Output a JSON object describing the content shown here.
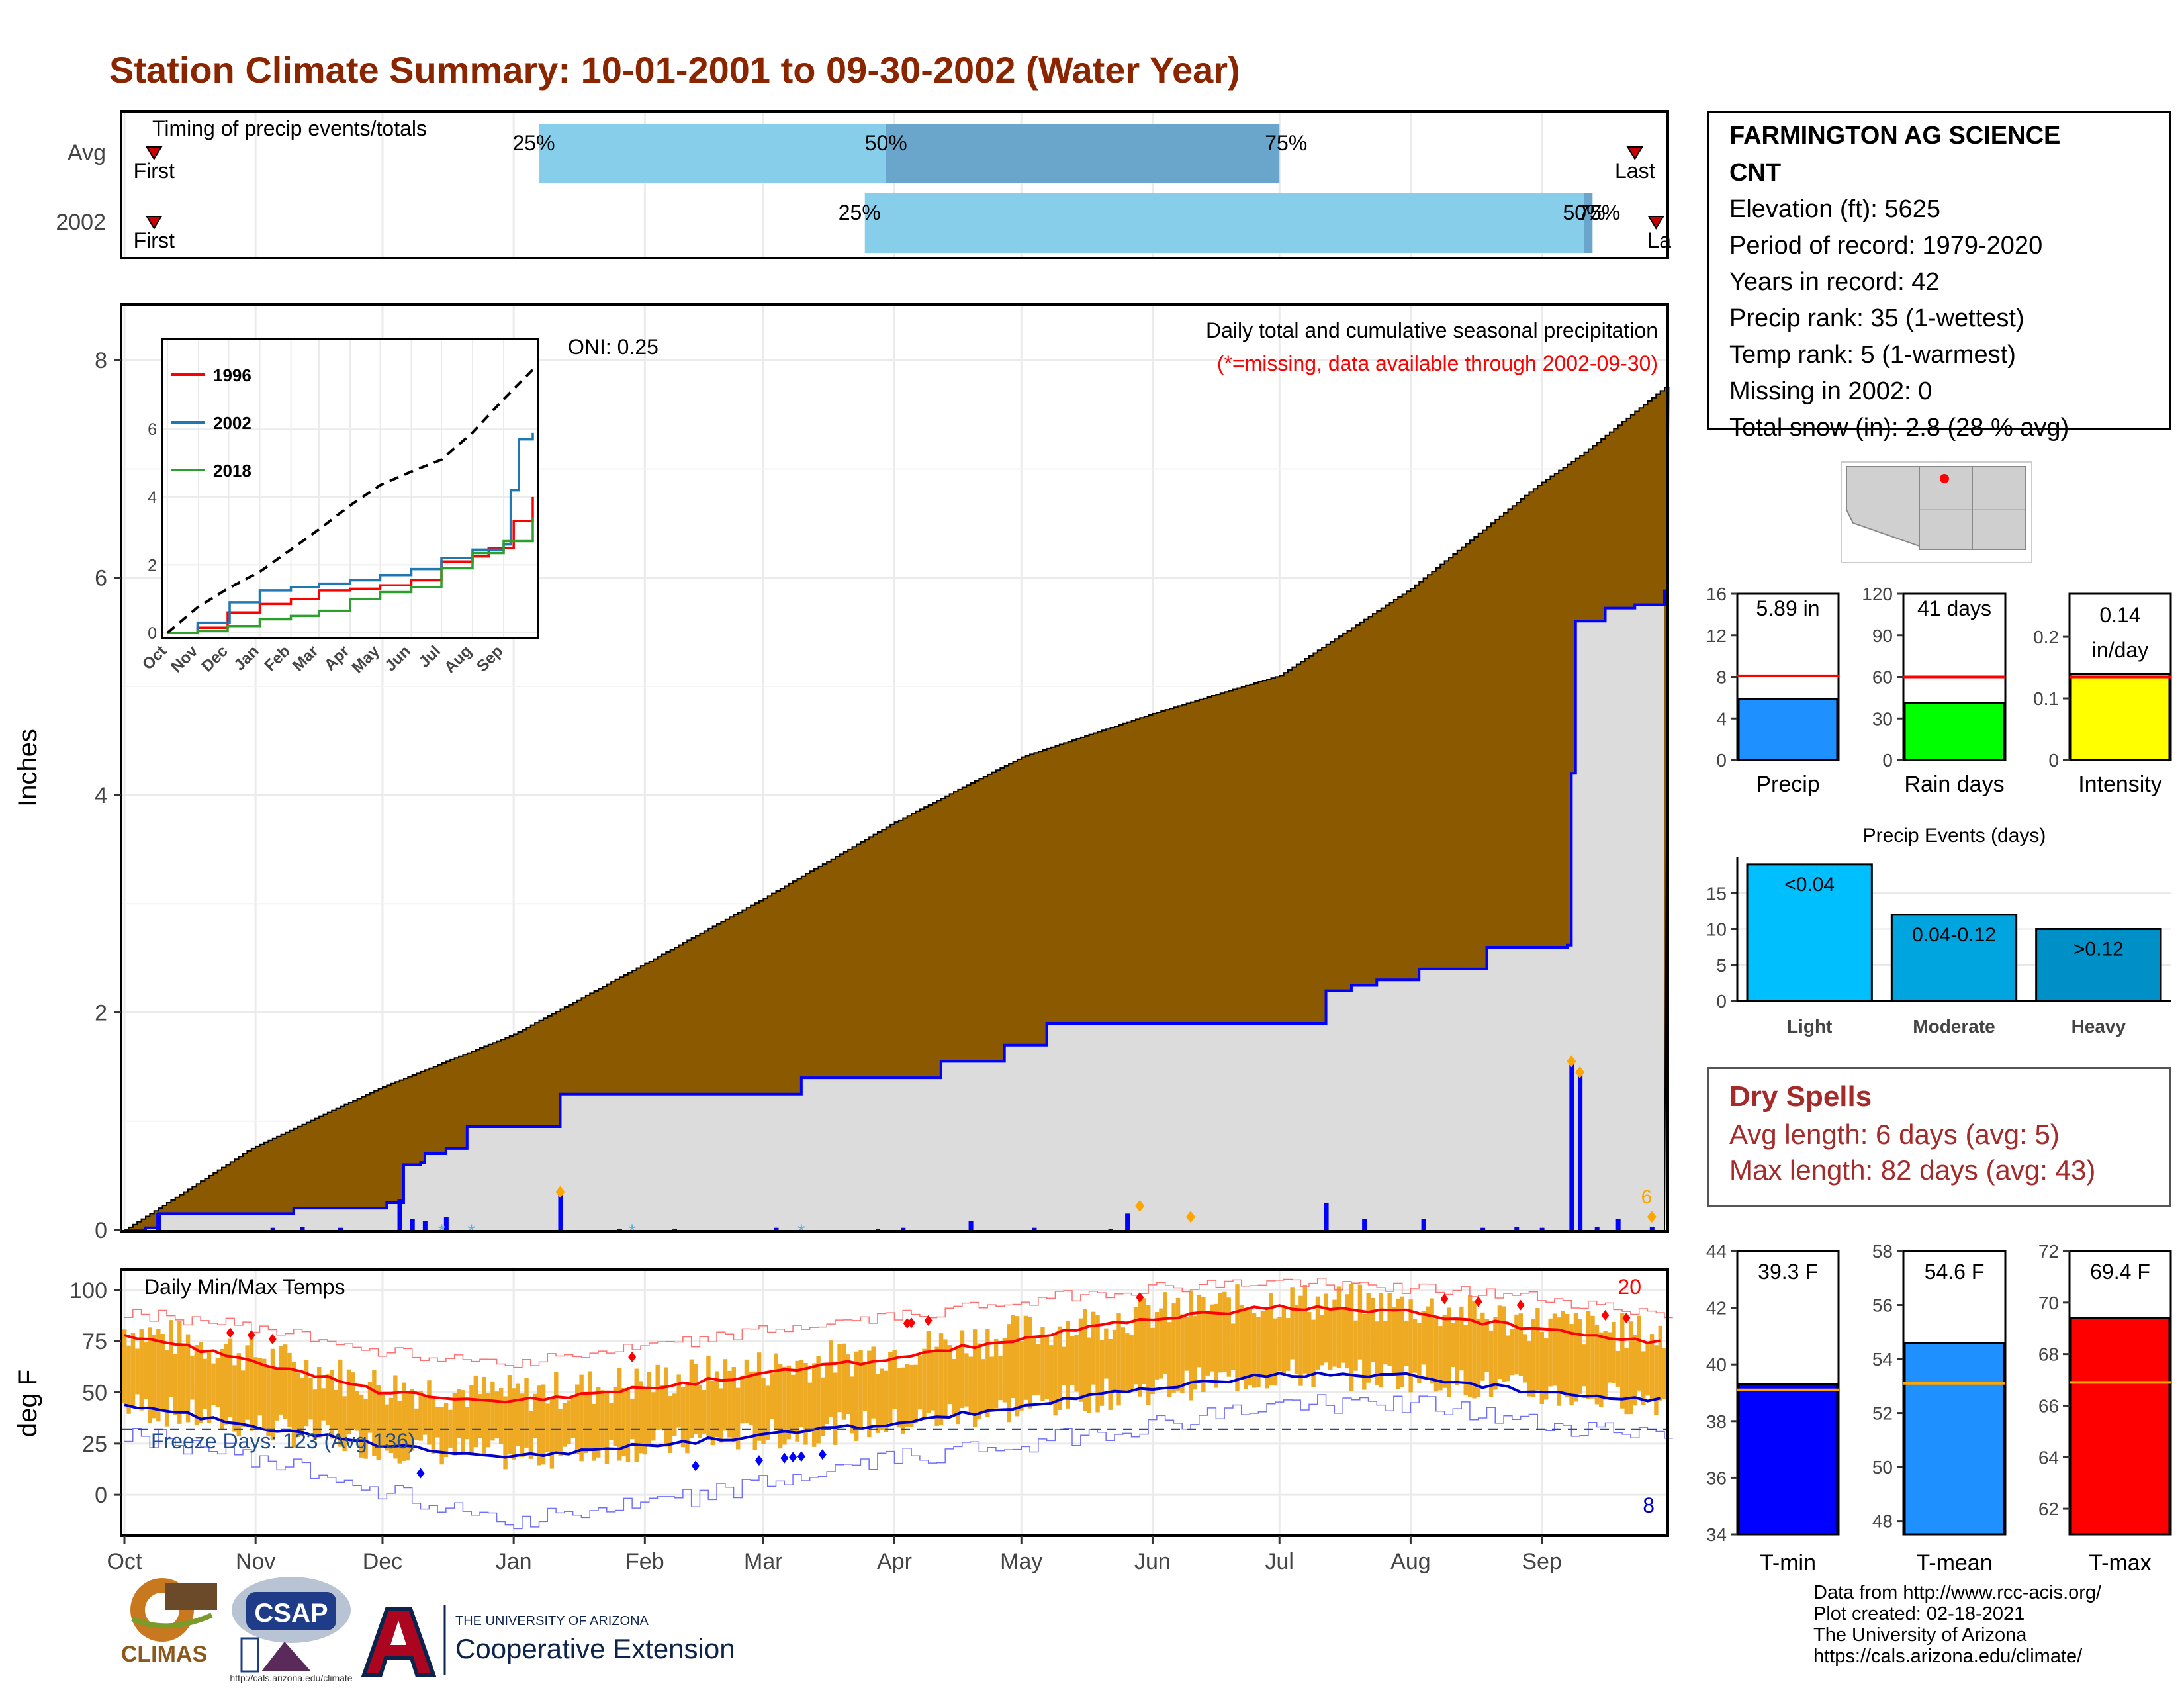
{
  "page": {
    "title": "Station Climate Summary: 10-01-2001 to 09-30-2002 (Water Year)"
  },
  "timing": {
    "label": "Timing of precip events/totals",
    "rows": [
      {
        "name": "Avg",
        "first_label": "First",
        "last_label": "Last",
        "p25_label": "25%",
        "p50_label": "50%",
        "p75_label": "75%",
        "first_day": 7,
        "last_day": 357,
        "p25_day": 98,
        "p50_day": 180,
        "p75_day": 273
      },
      {
        "name": "2002",
        "first_label": "First",
        "last_label": "La",
        "p25_label": "25%",
        "p50_label": "50%",
        "p75_label": "75%",
        "first_day": 7,
        "last_day": 362,
        "p25_day": 175,
        "p50_day": 345,
        "p75_day": 347
      }
    ]
  },
  "precip_panel": {
    "title": "Daily total and cumulative seasonal precipitation",
    "note": "(*=missing, data available through 2002-09-30)",
    "oni": "ONI: 0.25",
    "ylabel": "Inches",
    "corner_count": "6"
  },
  "temp_panel": {
    "title": "Daily Min/Max Temps",
    "ylabel": "deg F",
    "freeze_label": "Freeze Days: 123 (Avg 136)",
    "hot_count": "20",
    "cold_count": "8"
  },
  "station": {
    "name_line1": "FARMINGTON AG SCIENCE",
    "name_line2": "CNT",
    "elevation": "Elevation (ft): 5625",
    "period": "Period of record: 1979-2020",
    "years": "Years in record: 42",
    "precip_rank": "Precip rank: 35 (1-wettest)",
    "temp_rank": "Temp rank: 5 (1-warmest)",
    "missing": "Missing in 2002: 0",
    "snow": "Total snow (in): 2.8 (28 % avg)"
  },
  "dry_spells": {
    "title": "Dry Spells",
    "avg": "Avg length: 6 days (avg: 5)",
    "max": "Max length: 82 days (avg: 43)"
  },
  "footer": {
    "line1": "Data from http://www.rcc-acis.org/",
    "line2": "Plot created: 02-18-2021",
    "line3": "The University of Arizona",
    "line4": "https://cals.arizona.edu/climate/",
    "logo_climas": "CLIMAS",
    "logo_csap": "CSAP",
    "logo_csap_url": "http://cals.arizona.edu/climate",
    "logo_ua_top": "THE UNIVERSITY OF ARIZONA",
    "logo_ua_bottom": "Cooperative Extension"
  },
  "colors": {
    "title": "#8b2500",
    "cum_precip_fill": "#8b5a00",
    "avg_cum_area": "#dcdcdc",
    "daily_precip": "#0000ff",
    "temp_bar": "#eeaa22",
    "tmax_line": "#ff0000",
    "tmin_line": "#0000cc",
    "timing_light": "#87ceeb",
    "timing_dark": "#6aa5cc"
  },
  "chart_data": [
    {
      "type": "area",
      "name": "cumulative_precip",
      "xlabel": "",
      "ylabel": "Inches",
      "x_ticks": [
        "Oct",
        "Nov",
        "Dec",
        "Jan",
        "Feb",
        "Mar",
        "Apr",
        "May",
        "Jun",
        "Jul",
        "Aug",
        "Sep"
      ],
      "ylim": [
        0,
        8.5
      ],
      "y_ticks": [
        0,
        2,
        4,
        6,
        8
      ],
      "avg_cumulative_points": [
        [
          0,
          0
        ],
        [
          30,
          0.75
        ],
        [
          60,
          1.3
        ],
        [
          92,
          1.8
        ],
        [
          123,
          2.45
        ],
        [
          151,
          3.05
        ],
        [
          182,
          3.75
        ],
        [
          212,
          4.35
        ],
        [
          243,
          4.75
        ],
        [
          273,
          5.1
        ],
        [
          304,
          5.9
        ],
        [
          334,
          6.85
        ],
        [
          345,
          7.15
        ],
        [
          364,
          7.75
        ]
      ],
      "cumulative_2002_steps": [
        [
          0,
          0
        ],
        [
          5,
          0.02
        ],
        [
          8,
          0.15
        ],
        [
          35,
          0.15
        ],
        [
          40,
          0.2
        ],
        [
          62,
          0.25
        ],
        [
          66,
          0.6
        ],
        [
          70,
          0.62
        ],
        [
          71,
          0.7
        ],
        [
          76,
          0.75
        ],
        [
          81,
          0.95
        ],
        [
          103,
          1.25
        ],
        [
          160,
          1.4
        ],
        [
          193,
          1.55
        ],
        [
          208,
          1.7
        ],
        [
          218,
          1.9
        ],
        [
          284,
          2.2
        ],
        [
          290,
          2.25
        ],
        [
          296,
          2.3
        ],
        [
          306,
          2.4
        ],
        [
          322,
          2.6
        ],
        [
          341,
          2.62
        ],
        [
          342,
          4.2
        ],
        [
          343,
          5.6
        ],
        [
          350,
          5.72
        ],
        [
          357,
          5.75
        ],
        [
          364,
          5.89
        ]
      ],
      "daily_precip_bars": [
        [
          8,
          0.15
        ],
        [
          35,
          0.02
        ],
        [
          42,
          0.03
        ],
        [
          51,
          0.02
        ],
        [
          65,
          0.28
        ],
        [
          68,
          0.1
        ],
        [
          71,
          0.08
        ],
        [
          76,
          0.12
        ],
        [
          103,
          0.35
        ],
        [
          117,
          0.01
        ],
        [
          130,
          0.01
        ],
        [
          154,
          0.02
        ],
        [
          178,
          0.01
        ],
        [
          184,
          0.02
        ],
        [
          200,
          0.08
        ],
        [
          215,
          0.02
        ],
        [
          233,
          0.01
        ],
        [
          237,
          0.15
        ],
        [
          284,
          0.25
        ],
        [
          293,
          0.1
        ],
        [
          307,
          0.1
        ],
        [
          321,
          0.02
        ],
        [
          329,
          0.03
        ],
        [
          335,
          0.02
        ],
        [
          342,
          1.55
        ],
        [
          344,
          1.45
        ],
        [
          348,
          0.03
        ],
        [
          353,
          0.1
        ],
        [
          361,
          0.03
        ]
      ]
    },
    {
      "type": "line",
      "name": "inset_cumulative_comparison",
      "x_ticks": [
        "Oct",
        "Nov",
        "Dec",
        "Jan",
        "Feb",
        "Mar",
        "Apr",
        "May",
        "Jun",
        "Jul",
        "Aug",
        "Sep"
      ],
      "ylim": [
        0,
        8.5
      ],
      "y_ticks": [
        0,
        2,
        4,
        6
      ],
      "series": [
        {
          "name": "1996",
          "color": "#ff0000",
          "points": [
            [
              0,
              0
            ],
            [
              30,
              0.15
            ],
            [
              60,
              0.6
            ],
            [
              92,
              0.85
            ],
            [
              123,
              1.0
            ],
            [
              151,
              1.25
            ],
            [
              182,
              1.3
            ],
            [
              212,
              1.4
            ],
            [
              243,
              1.55
            ],
            [
              273,
              2.1
            ],
            [
              304,
              2.25
            ],
            [
              320,
              2.5
            ],
            [
              345,
              3.3
            ],
            [
              364,
              4.0
            ]
          ]
        },
        {
          "name": "2002",
          "color": "#1f77b4",
          "points": [
            [
              0,
              0
            ],
            [
              30,
              0.3
            ],
            [
              62,
              0.9
            ],
            [
              92,
              1.25
            ],
            [
              123,
              1.35
            ],
            [
              151,
              1.45
            ],
            [
              182,
              1.55
            ],
            [
              212,
              1.7
            ],
            [
              243,
              1.88
            ],
            [
              273,
              2.2
            ],
            [
              304,
              2.45
            ],
            [
              335,
              2.6
            ],
            [
              342,
              4.2
            ],
            [
              350,
              5.7
            ],
            [
              364,
              5.89
            ]
          ]
        },
        {
          "name": "2018",
          "color": "#2ca02c",
          "points": [
            [
              0,
              0
            ],
            [
              30,
              0.05
            ],
            [
              60,
              0.2
            ],
            [
              92,
              0.4
            ],
            [
              123,
              0.5
            ],
            [
              151,
              0.65
            ],
            [
              182,
              1.0
            ],
            [
              212,
              1.2
            ],
            [
              243,
              1.35
            ],
            [
              273,
              1.9
            ],
            [
              304,
              2.35
            ],
            [
              335,
              2.7
            ],
            [
              364,
              3.4
            ]
          ]
        },
        {
          "name": "",
          "color": "#000000",
          "dashed": true,
          "points": [
            [
              0,
              0
            ],
            [
              30,
              0.75
            ],
            [
              60,
              1.3
            ],
            [
              92,
              1.8
            ],
            [
              123,
              2.45
            ],
            [
              151,
              3.05
            ],
            [
              182,
              3.75
            ],
            [
              212,
              4.35
            ],
            [
              243,
              4.75
            ],
            [
              273,
              5.1
            ],
            [
              304,
              5.9
            ],
            [
              334,
              6.85
            ],
            [
              364,
              7.75
            ]
          ]
        }
      ]
    },
    {
      "type": "bar",
      "name": "daily_min_max_temps",
      "ylabel": "deg F",
      "x_ticks": [
        "Oct",
        "Nov",
        "Dec",
        "Jan",
        "Feb",
        "Mar",
        "Apr",
        "May",
        "Jun",
        "Jul",
        "Aug",
        "Sep"
      ],
      "ylim": [
        -20,
        110
      ],
      "y_ticks": [
        0,
        25,
        50,
        75,
        100
      ],
      "tmax_normal": [
        [
          0,
          78
        ],
        [
          30,
          66
        ],
        [
          61,
          50
        ],
        [
          92,
          46
        ],
        [
          123,
          52
        ],
        [
          151,
          59
        ],
        [
          182,
          67
        ],
        [
          212,
          76
        ],
        [
          243,
          86
        ],
        [
          273,
          92
        ],
        [
          304,
          89
        ],
        [
          334,
          81
        ],
        [
          364,
          74
        ]
      ],
      "tmin_normal": [
        [
          0,
          44
        ],
        [
          30,
          34
        ],
        [
          61,
          24
        ],
        [
          92,
          19
        ],
        [
          123,
          24
        ],
        [
          151,
          29
        ],
        [
          182,
          35
        ],
        [
          212,
          43
        ],
        [
          243,
          52
        ],
        [
          273,
          59
        ],
        [
          304,
          58
        ],
        [
          334,
          50
        ],
        [
          364,
          46
        ]
      ],
      "tmax_record": [
        [
          0,
          89
        ],
        [
          30,
          82
        ],
        [
          61,
          70
        ],
        [
          92,
          65
        ],
        [
          123,
          72
        ],
        [
          151,
          80
        ],
        [
          182,
          87
        ],
        [
          212,
          95
        ],
        [
          243,
          101
        ],
        [
          273,
          104
        ],
        [
          304,
          101
        ],
        [
          334,
          96
        ],
        [
          364,
          88
        ]
      ],
      "tmin_record": [
        [
          0,
          30
        ],
        [
          30,
          18
        ],
        [
          61,
          2
        ],
        [
          92,
          -12
        ],
        [
          123,
          -5
        ],
        [
          151,
          5
        ],
        [
          182,
          18
        ],
        [
          212,
          25
        ],
        [
          243,
          34
        ],
        [
          273,
          44
        ],
        [
          304,
          45
        ],
        [
          334,
          34
        ],
        [
          364,
          30
        ]
      ],
      "freeze_line": 32,
      "hot_markers": [
        25,
        30,
        35,
        120,
        185,
        186,
        190,
        240,
        312,
        320,
        330,
        350,
        355
      ],
      "cold_markers": [
        70,
        135,
        150,
        156,
        158,
        160,
        165
      ],
      "freeze_label": "Freeze Days: 123 (Avg 136)"
    },
    {
      "type": "bar",
      "name": "precip_total",
      "xlabel": "Precip",
      "ylim": [
        0,
        16
      ],
      "y_ticks": [
        0,
        4,
        8,
        12,
        16
      ],
      "value": 5.89,
      "normal": 8.1,
      "label": "5.89 in",
      "color": "#1e90ff"
    },
    {
      "type": "bar",
      "name": "rain_days",
      "xlabel": "Rain days",
      "ylim": [
        0,
        120
      ],
      "y_ticks": [
        0,
        30,
        60,
        90,
        120
      ],
      "value": 41,
      "normal": 60,
      "label": "41 days",
      "color": "#00ff00"
    },
    {
      "type": "bar",
      "name": "intensity",
      "xlabel": "Intensity",
      "ylim": [
        0,
        0.27
      ],
      "y_ticks": [
        0.0,
        0.1,
        0.2
      ],
      "value": 0.14,
      "normal": 0.135,
      "label_line1": "0.14",
      "label_line2": "in/day",
      "color": "#ffff00"
    },
    {
      "type": "bar",
      "name": "precip_events",
      "title": "Precip Events (days)",
      "categories": [
        "Light",
        "Moderate",
        "Heavy"
      ],
      "inbar_labels": [
        "<0.04",
        "0.04-0.12",
        ">0.12"
      ],
      "values": [
        19,
        12,
        10
      ],
      "colors": [
        "#00bfff",
        "#00a5e0",
        "#0090c8"
      ],
      "ylim": [
        0,
        20
      ],
      "y_ticks": [
        0,
        5,
        10,
        15
      ]
    },
    {
      "type": "bar",
      "name": "t_min",
      "xlabel": "T-min",
      "ylim": [
        34,
        44
      ],
      "y_ticks": [
        34,
        36,
        38,
        40,
        42,
        44
      ],
      "value": 39.3,
      "normal": 39.1,
      "label": "39.3 F",
      "color": "#0000ff"
    },
    {
      "type": "bar",
      "name": "t_mean",
      "xlabel": "T-mean",
      "ylim": [
        47.5,
        58
      ],
      "y_ticks": [
        48,
        50,
        52,
        54,
        56,
        58
      ],
      "value": 54.6,
      "normal": 53.1,
      "label": "54.6 F",
      "color": "#1e90ff"
    },
    {
      "type": "bar",
      "name": "t_max",
      "xlabel": "T-max",
      "ylim": [
        61,
        72
      ],
      "y_ticks": [
        62,
        64,
        66,
        68,
        70,
        72
      ],
      "value": 69.4,
      "normal": 66.9,
      "label": "69.4 F",
      "color": "#ff0000"
    }
  ]
}
